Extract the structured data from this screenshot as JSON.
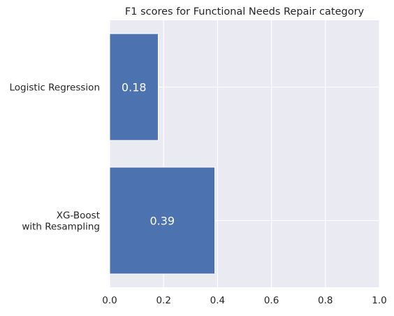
{
  "chart_data": {
    "type": "bar",
    "orientation": "horizontal",
    "title": "F1 scores for Functional Needs Repair category",
    "xlabel": "",
    "ylabel": "",
    "categories": [
      "Logistic Regression",
      "XG-Boost\nwith Resampling"
    ],
    "values": [
      0.18,
      0.39
    ],
    "value_labels": [
      "0.18",
      "0.39"
    ],
    "xlim": [
      0,
      1.0
    ],
    "xticks": [
      "0.0",
      "0.2",
      "0.4",
      "0.6",
      "0.8",
      "1.0"
    ],
    "grid": true,
    "background_color": "#eaeaf2",
    "bar_color": "#4c72b0",
    "grid_color": "#ffffff"
  }
}
